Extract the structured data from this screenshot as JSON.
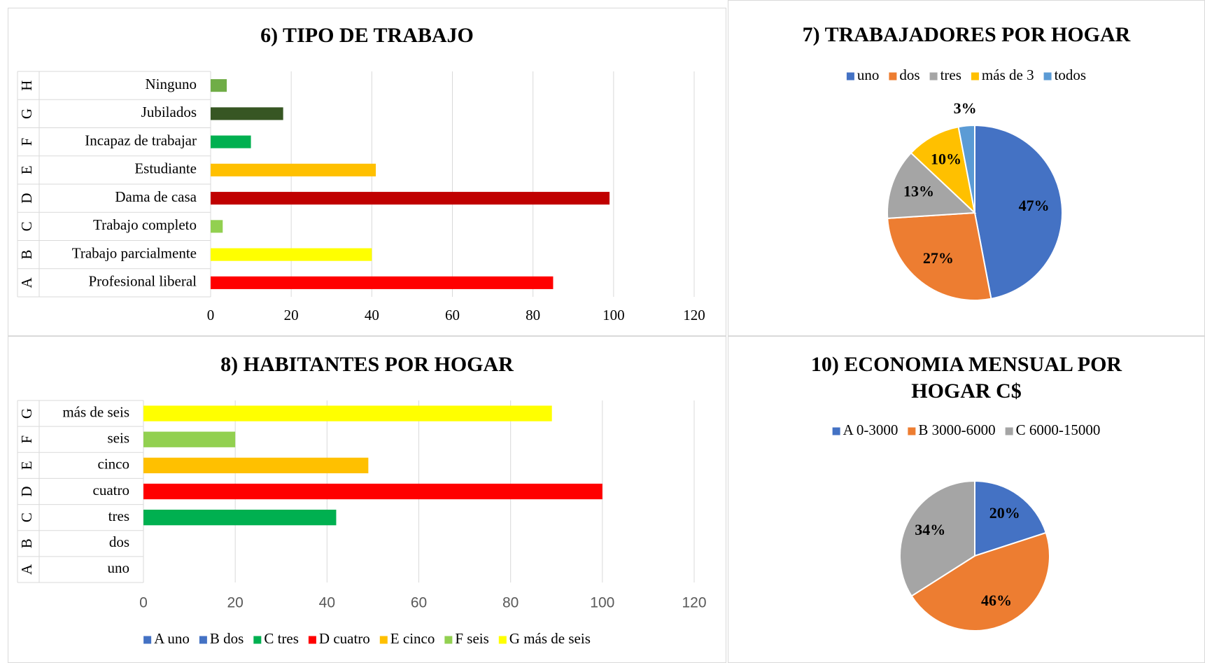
{
  "chart_data": [
    {
      "type": "bar",
      "orientation": "horizontal",
      "title": "6) TIPO DE TRABAJO",
      "groups": [
        "A",
        "B",
        "C",
        "D",
        "E",
        "F",
        "G",
        "H"
      ],
      "categories": [
        "Profesional liberal",
        "Trabajo parcialmente",
        "Trabajo completo",
        "Dama de casa",
        "Estudiante",
        "Incapaz de trabajar",
        "Jubilados",
        "Ninguno"
      ],
      "values": [
        85,
        40,
        3,
        99,
        41,
        10,
        18,
        4
      ],
      "colors": [
        "#ff0000",
        "#ffff00",
        "#92d050",
        "#c00000",
        "#ffc000",
        "#00b050",
        "#375623",
        "#70ad47"
      ],
      "xlim": [
        0,
        120
      ],
      "xticks": [
        0,
        20,
        40,
        60,
        80,
        100,
        120
      ],
      "grid": true
    },
    {
      "type": "pie",
      "title": "7) TRABAJADORES POR HOGAR",
      "categories": [
        "uno",
        "dos",
        "tres",
        "más de 3",
        "todos"
      ],
      "values": [
        47,
        27,
        13,
        10,
        3
      ],
      "value_labels": [
        "47%",
        "27%",
        "13%",
        "10%",
        "3%"
      ],
      "colors": [
        "#4472c4",
        "#ed7d31",
        "#a5a5a5",
        "#ffc000",
        "#5b9bd5"
      ]
    },
    {
      "type": "bar",
      "orientation": "horizontal",
      "title": "8) HABITANTES POR HOGAR",
      "groups": [
        "A",
        "B",
        "C",
        "D",
        "E",
        "F",
        "G"
      ],
      "categories": [
        "uno",
        "dos",
        "tres",
        "cuatro",
        "cinco",
        "seis",
        "más de seis"
      ],
      "values": [
        0,
        0,
        42,
        100,
        49,
        20,
        89
      ],
      "colors": [
        "#4472c4",
        "#4472c4",
        "#00b050",
        "#ff0000",
        "#ffc000",
        "#92d050",
        "#ffff00"
      ],
      "legend": [
        "A uno",
        "B dos",
        "C tres",
        "D cuatro",
        "E cinco",
        "F seis",
        "G más de seis"
      ],
      "xlim": [
        0,
        120
      ],
      "xticks": [
        0,
        20,
        40,
        60,
        80,
        100,
        120
      ],
      "grid": true
    },
    {
      "type": "pie",
      "title": "10) ECONOMIA MENSUAL POR HOGAR C$",
      "categories": [
        "A 0-3000",
        "B 3000-6000",
        "C 6000-15000"
      ],
      "values": [
        20,
        46,
        34
      ],
      "value_labels": [
        "20%",
        "46%",
        "34%"
      ],
      "colors": [
        "#4472c4",
        "#ed7d31",
        "#a5a5a5"
      ]
    }
  ]
}
